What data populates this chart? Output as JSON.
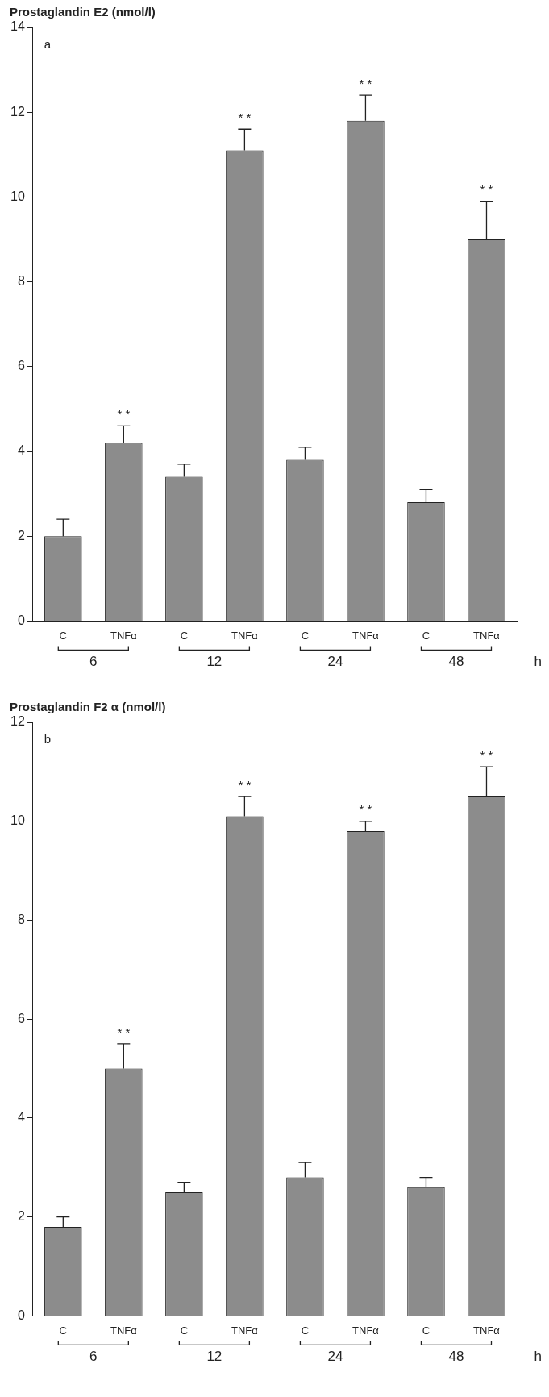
{
  "chart_data": [
    {
      "type": "bar",
      "ylabel": "Prostaglandin E2 (nmol/l)",
      "xlabel": "h",
      "categories": [
        "C",
        "TNFα",
        "C",
        "TNFα",
        "C",
        "TNFα",
        "C",
        "TNFα"
      ],
      "values": [
        2.0,
        4.2,
        3.4,
        11.1,
        3.8,
        11.8,
        2.8,
        9.0
      ],
      "color": "#8c8c8c",
      "errors": [
        [
          2.0,
          2.4
        ],
        [
          4.2,
          4.6
        ],
        [
          3.4,
          3.7
        ],
        [
          11.1,
          11.6
        ],
        [
          3.8,
          4.1
        ],
        [
          11.8,
          12.4
        ],
        [
          2.8,
          3.1
        ],
        [
          9.0,
          9.9
        ]
      ],
      "ylim": [
        0,
        14
      ],
      "yticks": [
        0,
        2,
        4,
        6,
        8,
        10,
        12,
        14
      ],
      "legend": false,
      "annotations": [
        "a",
        "6",
        "12",
        "24",
        "48",
        "* *",
        "* *",
        "* *",
        "* *"
      ]
    },
    {
      "type": "bar",
      "ylabel": "Prostaglandin F2 α (nmol/l)",
      "xlabel": "h",
      "categories": [
        "C",
        "TNFα",
        "C",
        "TNFα",
        "C",
        "TNFα",
        "C",
        "TNFα"
      ],
      "values": [
        1.8,
        5.0,
        2.5,
        10.1,
        2.8,
        9.8,
        2.6,
        10.5
      ],
      "color": "#8c8c8c",
      "errors": [
        [
          1.8,
          2.0
        ],
        [
          5.0,
          5.5
        ],
        [
          2.5,
          2.7
        ],
        [
          10.1,
          10.5
        ],
        [
          2.8,
          3.1
        ],
        [
          9.8,
          10.0
        ],
        [
          2.6,
          2.8
        ],
        [
          10.5,
          11.1
        ]
      ],
      "ylim": [
        0,
        12
      ],
      "yticks": [
        0,
        2,
        4,
        6,
        8,
        10,
        12
      ],
      "legend": false,
      "annotations": [
        "b",
        "6",
        "12",
        "24",
        "48",
        "* *",
        "* *",
        "* *",
        "* *"
      ]
    }
  ]
}
